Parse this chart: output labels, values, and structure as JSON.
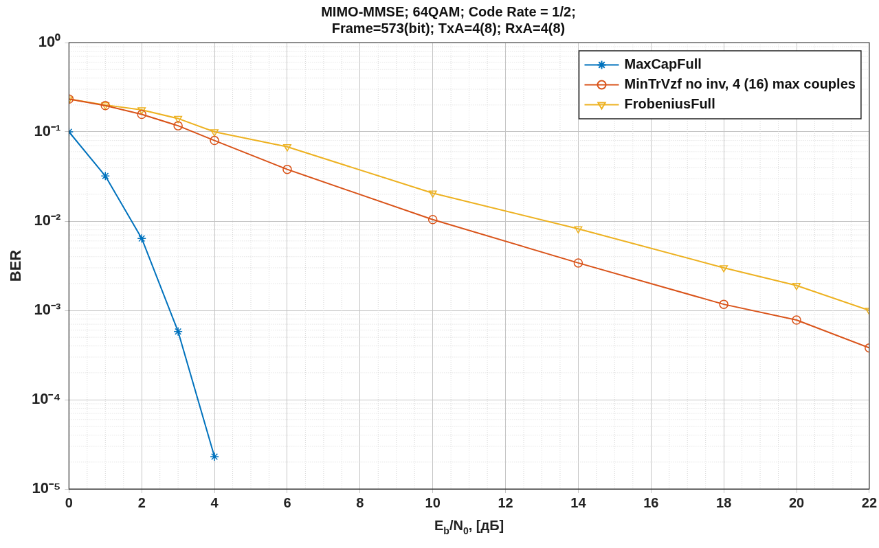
{
  "chart_data": {
    "type": "line",
    "title": "MIMO-MMSE; 64QAM; Code Rate = 1/2;\nFrame=573(bit); TxA=4(8); RxA=4(8)",
    "xlabel": "E$_{b}$/N$_{0}$, [дБ]",
    "ylabel": "BER",
    "log": "y",
    "xlim": [
      0,
      22
    ],
    "xticks": [
      0,
      2,
      4,
      6,
      8,
      10,
      12,
      14,
      16,
      18,
      20,
      22
    ],
    "ylim": [
      1e-05,
      1
    ],
    "yticks": [
      {
        "value": 1,
        "label": "10⁰"
      },
      {
        "value": 0.1,
        "label": "10⁻¹"
      },
      {
        "value": 0.01,
        "label": "10⁻²"
      },
      {
        "value": 0.001,
        "label": "10⁻³"
      },
      {
        "value": 0.0001,
        "label": "10⁻⁴"
      },
      {
        "value": 1e-05,
        "label": "10⁻⁵"
      }
    ],
    "grid": true,
    "legend": "top right",
    "series": [
      {
        "name": "MaxCapFull",
        "color": "#0072bd",
        "marker": "cross",
        "x": [
          0,
          1,
          2,
          3,
          4
        ],
        "values": [
          0.1,
          0.032,
          0.0064,
          0.00058,
          2.3e-05
        ]
      },
      {
        "name": "MinTrVzf no inv, 4 (16) max couples",
        "color": "#d95319",
        "marker": "circle",
        "x": [
          0,
          1,
          2,
          3,
          4,
          6,
          10,
          14,
          18,
          20,
          22
        ],
        "values": [
          0.233,
          0.197,
          0.157,
          0.117,
          0.08,
          0.038,
          0.0104,
          0.0034,
          0.00117,
          0.00078,
          0.00038
        ]
      },
      {
        "name": "FrobeniusFull",
        "color": "#edb120",
        "marker": "triangle",
        "x": [
          0,
          1,
          2,
          3,
          4,
          6,
          10,
          14,
          18,
          20,
          22
        ],
        "values": [
          0.233,
          0.2,
          0.176,
          0.141,
          0.1,
          0.068,
          0.0206,
          0.0082,
          0.003,
          0.0019,
          0.001
        ]
      }
    ]
  }
}
